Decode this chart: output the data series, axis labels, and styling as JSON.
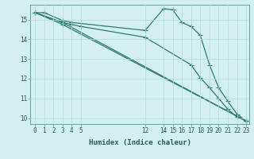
{
  "xlabel": "Humidex (Indice chaleur)",
  "background_color": "#d4efef",
  "grid_color": "#b8d8d8",
  "line_color": "#2e7d70",
  "xlim": [
    -0.5,
    23.3
  ],
  "ylim": [
    9.7,
    15.75
  ],
  "xticks": [
    0,
    1,
    2,
    3,
    4,
    5,
    12,
    14,
    15,
    16,
    17,
    18,
    19,
    20,
    21,
    22,
    23
  ],
  "yticks": [
    10,
    11,
    12,
    13,
    14,
    15
  ],
  "lines": [
    {
      "x": [
        0,
        1,
        3,
        4,
        12,
        14,
        15,
        16,
        17,
        18,
        19,
        20,
        21,
        22,
        23
      ],
      "y": [
        15.35,
        15.35,
        14.95,
        14.85,
        14.45,
        15.55,
        15.5,
        14.85,
        14.65,
        14.2,
        12.7,
        11.55,
        10.85,
        10.2,
        9.85
      ]
    },
    {
      "x": [
        0,
        3,
        4,
        5,
        12,
        17,
        18,
        19,
        20,
        21,
        22,
        23
      ],
      "y": [
        15.35,
        14.85,
        14.75,
        14.65,
        14.1,
        12.7,
        12.05,
        11.55,
        11.0,
        10.45,
        10.05,
        9.85
      ]
    },
    {
      "x": [
        0,
        3,
        23
      ],
      "y": [
        15.35,
        14.85,
        9.85
      ]
    },
    {
      "x": [
        0,
        3,
        23
      ],
      "y": [
        15.35,
        14.75,
        9.85
      ]
    }
  ],
  "marker_size": 2.5,
  "line_width": 0.9,
  "tick_fontsize": 5.5,
  "xlabel_fontsize": 6.5
}
